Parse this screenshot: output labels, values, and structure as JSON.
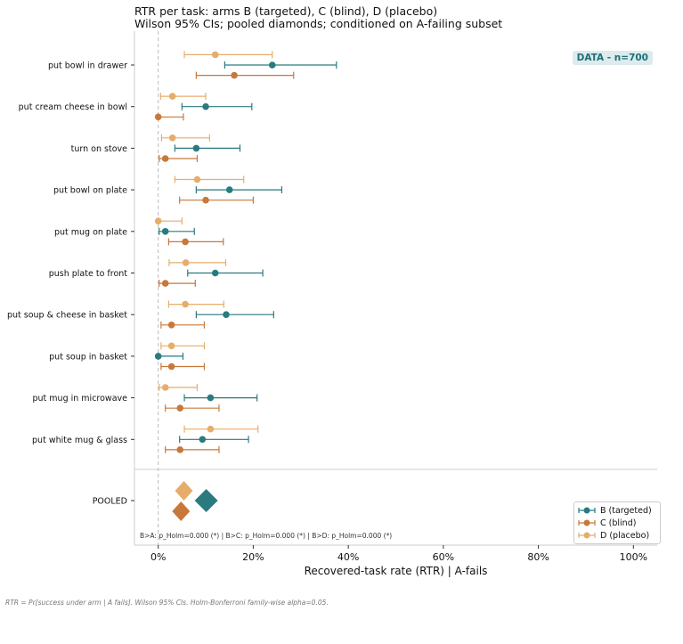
{
  "header": {
    "title": "RTR per task: arms B (targeted), C (blind), D (placebo)",
    "subtitle": "Wilson 95% CIs; pooled diamonds; conditioned on A-failing subset"
  },
  "badge": "DATA - n=700",
  "stats_text": "B>A: p_Holm=0.000 (*)  |  B>C: p_Holm=0.000 (*)  |  B>D: p_Holm=0.000 (*)",
  "footnote": "RTR = Pr[success under arm | A fails]. Wilson 95% CIs. Holm-Bonferroni family-wise alpha=0.05.",
  "colors": {
    "B": "#2a7a7f",
    "C": "#c8783a",
    "D": "#e6ad6a",
    "ref_line": "#bbbbbb",
    "axis": "#cccccc"
  },
  "legend": [
    {
      "key": "B",
      "label": "B (targeted)"
    },
    {
      "key": "C",
      "label": "C (blind)"
    },
    {
      "key": "D",
      "label": "D (placebo)"
    }
  ],
  "chart_data": {
    "type": "scatter",
    "xlabel": "Recovered-task rate (RTR) | A-fails",
    "xlim": [
      -0.05,
      1.05
    ],
    "xticks": [
      {
        "value": 0,
        "label": "0%"
      },
      {
        "value": 0.2,
        "label": "20%"
      },
      {
        "value": 0.4,
        "label": "40%"
      },
      {
        "value": 0.6,
        "label": "60%"
      },
      {
        "value": 0.8,
        "label": "80%"
      },
      {
        "value": 1.0,
        "label": "100%"
      }
    ],
    "ref_line_x": 0,
    "grid": false,
    "legend_position": "bottom-right",
    "tasks": [
      {
        "name": "put bowl in drawer",
        "D": {
          "value": 0.12,
          "lo": 0.055,
          "hi": 0.24
        },
        "B": {
          "value": 0.24,
          "lo": 0.14,
          "hi": 0.375
        },
        "C": {
          "value": 0.16,
          "lo": 0.08,
          "hi": 0.285
        }
      },
      {
        "name": "put cream cheese in bowl",
        "D": {
          "value": 0.03,
          "lo": 0.005,
          "hi": 0.1
        },
        "B": {
          "value": 0.1,
          "lo": 0.05,
          "hi": 0.197
        },
        "C": {
          "value": 0.0,
          "lo": 0.0,
          "hi": 0.053
        }
      },
      {
        "name": "turn on stove",
        "D": {
          "value": 0.03,
          "lo": 0.007,
          "hi": 0.108
        },
        "B": {
          "value": 0.08,
          "lo": 0.035,
          "hi": 0.172
        },
        "C": {
          "value": 0.015,
          "lo": 0.002,
          "hi": 0.082
        }
      },
      {
        "name": "put bowl on plate",
        "D": {
          "value": 0.082,
          "lo": 0.035,
          "hi": 0.18
        },
        "B": {
          "value": 0.15,
          "lo": 0.08,
          "hi": 0.26
        },
        "C": {
          "value": 0.1,
          "lo": 0.045,
          "hi": 0.2
        }
      },
      {
        "name": "put mug on plate",
        "D": {
          "value": 0.0,
          "lo": 0.0,
          "hi": 0.05
        },
        "B": {
          "value": 0.015,
          "lo": 0.002,
          "hi": 0.076
        },
        "C": {
          "value": 0.057,
          "lo": 0.022,
          "hi": 0.137
        }
      },
      {
        "name": "push plate to front",
        "D": {
          "value": 0.058,
          "lo": 0.023,
          "hi": 0.142
        },
        "B": {
          "value": 0.12,
          "lo": 0.062,
          "hi": 0.22
        },
        "C": {
          "value": 0.015,
          "lo": 0.002,
          "hi": 0.078
        }
      },
      {
        "name": "put soup & cheese in basket",
        "D": {
          "value": 0.057,
          "lo": 0.022,
          "hi": 0.138
        },
        "B": {
          "value": 0.143,
          "lo": 0.08,
          "hi": 0.243
        },
        "C": {
          "value": 0.028,
          "lo": 0.006,
          "hi": 0.097
        }
      },
      {
        "name": "put soup in basket",
        "D": {
          "value": 0.028,
          "lo": 0.006,
          "hi": 0.097
        },
        "B": {
          "value": 0.0,
          "lo": 0.0,
          "hi": 0.052
        },
        "C": {
          "value": 0.028,
          "lo": 0.006,
          "hi": 0.097
        }
      },
      {
        "name": "put mug in microwave",
        "D": {
          "value": 0.015,
          "lo": 0.002,
          "hi": 0.082
        },
        "B": {
          "value": 0.11,
          "lo": 0.055,
          "hi": 0.208
        },
        "C": {
          "value": 0.046,
          "lo": 0.015,
          "hi": 0.128
        }
      },
      {
        "name": "put white mug & glass",
        "D": {
          "value": 0.11,
          "lo": 0.055,
          "hi": 0.21
        },
        "B": {
          "value": 0.093,
          "lo": 0.045,
          "hi": 0.19
        },
        "C": {
          "value": 0.046,
          "lo": 0.015,
          "hi": 0.128
        }
      }
    ],
    "pooled": {
      "label": "POOLED",
      "D": 0.054,
      "B": 0.101,
      "C": 0.048
    }
  }
}
